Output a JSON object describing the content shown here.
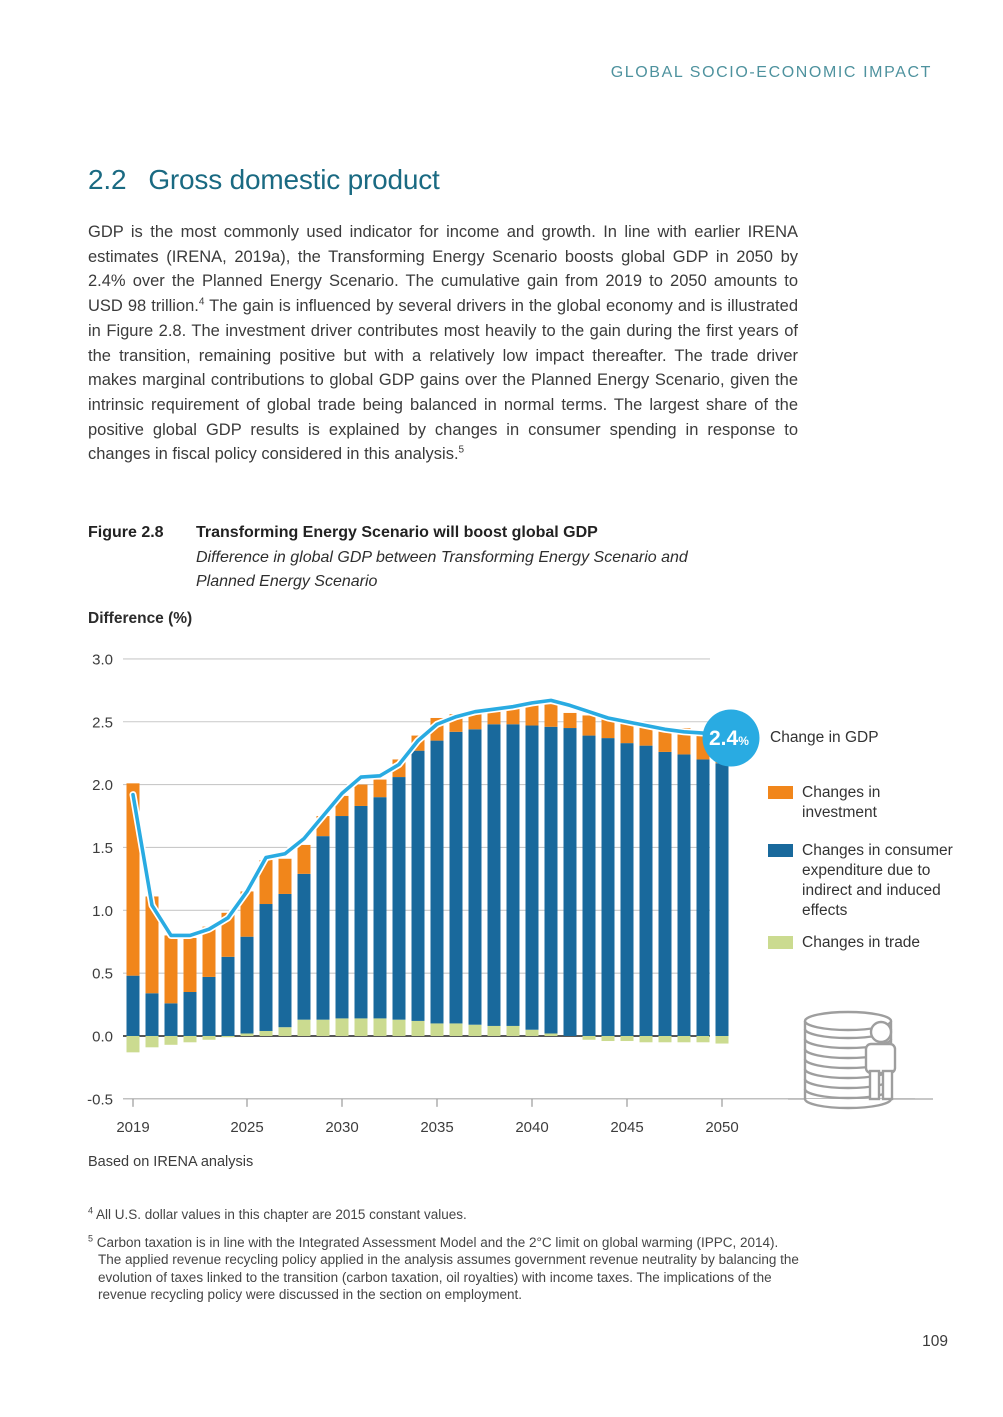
{
  "page": {
    "header": "GLOBAL SOCIO-ECONOMIC IMPACT",
    "number": "109"
  },
  "section": {
    "number": "2.2",
    "title": "Gross domestic product"
  },
  "body": {
    "p1a": "GDP is the most commonly used indicator for income and growth. In line with earlier IRENA estimates (IRENA, 2019a), the Transforming Energy Scenario boosts global GDP in 2050 by 2.4% over the Planned Energy Scenario. The cumulative gain from 2019 to 2050 amounts to USD 98 trillion.",
    "fn1": "4",
    "p1b": " The gain is influenced by several drivers in the global economy and is illustrated in Figure 2.8. The investment driver contributes most heavily to the gain during the first years of the transition, remaining positive but with a relatively low impact thereafter. The trade driver makes marginal contributions to global GDP gains over the Planned Energy Scenario, given the intrinsic requirement of global trade being balanced in normal terms. The largest share of the positive global GDP results is explained by changes in consumer spending in response to changes in fiscal policy considered in this analysis.",
    "fn2": "5"
  },
  "figure": {
    "label": "Figure 2.8",
    "title": "Transforming Energy Scenario will boost global GDP",
    "subtitle": "Difference in global GDP between Transforming Energy Scenario and Planned Energy Scenario"
  },
  "chart_data": {
    "type": "bar",
    "subtype": "stacked bars with overlaid line",
    "ylabel": "Difference (%)",
    "ylim": [
      -0.5,
      3.0
    ],
    "ytick_step": 0.5,
    "yticks": [
      "3.0",
      "2.5",
      "2.0",
      "1.5",
      "1.0",
      "0.5",
      "0.0",
      "-0.5"
    ],
    "xticks": [
      2019,
      2025,
      2030,
      2035,
      2040,
      2045,
      2050
    ],
    "years": [
      2019,
      2020,
      2021,
      2022,
      2023,
      2024,
      2025,
      2026,
      2027,
      2028,
      2029,
      2030,
      2031,
      2032,
      2033,
      2034,
      2035,
      2036,
      2037,
      2038,
      2039,
      2040,
      2041,
      2042,
      2043,
      2044,
      2045,
      2046,
      2047,
      2048,
      2049,
      2050
    ],
    "stack_order_bottom_to_top": [
      "trade",
      "consumer",
      "investment"
    ],
    "series": [
      {
        "key": "investment",
        "name": "Changes in investment",
        "color": "#F1861B",
        "values": [
          1.53,
          0.77,
          0.54,
          0.43,
          0.4,
          0.35,
          0.36,
          0.35,
          0.28,
          0.23,
          0.16,
          0.16,
          0.17,
          0.14,
          0.14,
          0.12,
          0.18,
          0.14,
          0.13,
          0.13,
          0.14,
          0.18,
          0.18,
          0.12,
          0.16,
          0.15,
          0.16,
          0.17,
          0.19,
          0.21,
          0.22,
          0.24
        ]
      },
      {
        "key": "consumer",
        "name": "Changes in consumer expenditure due to indirect and induced effects",
        "color": "#19699C",
        "values": [
          0.48,
          0.34,
          0.26,
          0.35,
          0.47,
          0.63,
          0.77,
          1.01,
          1.06,
          1.16,
          1.46,
          1.61,
          1.69,
          1.76,
          1.93,
          2.15,
          2.25,
          2.32,
          2.35,
          2.4,
          2.4,
          2.42,
          2.44,
          2.45,
          2.39,
          2.37,
          2.33,
          2.31,
          2.26,
          2.24,
          2.2,
          2.17
        ]
      },
      {
        "key": "trade",
        "name": "Changes in trade",
        "color": "#CBDB90",
        "values": [
          -0.13,
          -0.09,
          -0.07,
          -0.05,
          -0.03,
          -0.01,
          0.02,
          0.04,
          0.07,
          0.13,
          0.13,
          0.14,
          0.14,
          0.14,
          0.13,
          0.12,
          0.1,
          0.1,
          0.09,
          0.08,
          0.08,
          0.05,
          0.02,
          0.0,
          -0.03,
          -0.04,
          -0.04,
          -0.05,
          -0.05,
          -0.05,
          -0.05,
          -0.06
        ]
      }
    ],
    "line": {
      "name": "Change in GDP",
      "color": "#29ABE2",
      "values": [
        1.92,
        1.04,
        0.8,
        0.8,
        0.85,
        0.94,
        1.15,
        1.42,
        1.45,
        1.57,
        1.75,
        1.93,
        2.06,
        2.07,
        2.16,
        2.35,
        2.48,
        2.54,
        2.58,
        2.6,
        2.62,
        2.65,
        2.67,
        2.63,
        2.58,
        2.53,
        2.5,
        2.47,
        2.44,
        2.42,
        2.41,
        2.4
      ]
    },
    "callout": {
      "value": "2.4",
      "unit": "%",
      "color": "#29ABE2"
    },
    "grid": "horizontal gridlines on, zero line emphasized",
    "legend_position": "right"
  },
  "legend": {
    "gdp": "Change in GDP",
    "investment": "Changes in investment",
    "consumer": "Changes in consumer expenditure due to indirect and induced effects",
    "trade": "Changes in trade"
  },
  "source": "Based on IRENA analysis",
  "footnotes": [
    {
      "marker": "4",
      "text": " All U.S. dollar values in this chapter are 2015 constant values."
    },
    {
      "marker": "5",
      "text": " Carbon taxation is in line with the Integrated Assessment Model and the 2°C limit on global warming (IPPC, 2014). The applied revenue recycling policy applied in the analysis assumes government revenue neutrality by balancing the evolution of taxes linked to the transition (carbon taxation, oil royalties) with income taxes. The implications of the revenue recycling policy were discussed in the section on employment."
    }
  ]
}
